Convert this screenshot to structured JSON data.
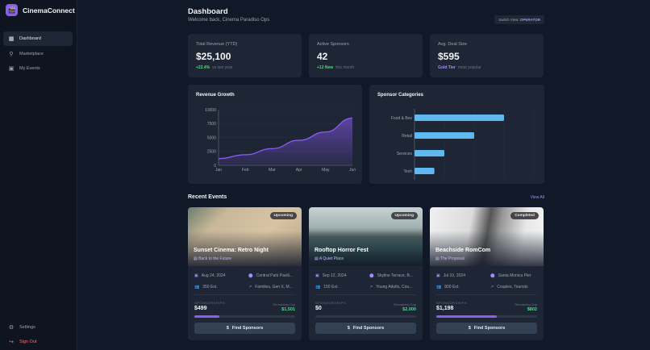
{
  "app": {
    "name": "CinemaConnect"
  },
  "sidebar": {
    "items": [
      {
        "label": "Dashboard",
        "icon": "grid-icon",
        "active": true
      },
      {
        "label": "Marketplace",
        "icon": "search-icon"
      },
      {
        "label": "My Events",
        "icon": "calendar-icon"
      }
    ],
    "bottom": [
      {
        "label": "Settings",
        "icon": "gear-icon"
      },
      {
        "label": "Sign Out",
        "icon": "sign-out-icon"
      }
    ]
  },
  "header": {
    "title": "Dashboard",
    "subtitle": "Welcome back, Cinema Paradiso Ops",
    "switch_label": "Switch View:",
    "switch_value": "OPERATOR"
  },
  "stats": [
    {
      "label": "Total Revenue (YTD)",
      "value": "$25,100",
      "delta": "+22.4%",
      "note": "vs last year"
    },
    {
      "label": "Active Sponsors",
      "value": "42",
      "delta": "+12 New",
      "note": "this month"
    },
    {
      "label": "Avg. Deal Size",
      "value": "$595",
      "delta": "Gold Tier",
      "note": "most popular"
    }
  ],
  "chart_data": [
    {
      "type": "area",
      "title": "Revenue Growth",
      "categories": [
        "Jan",
        "Feb",
        "Mar",
        "Apr",
        "May",
        "Jun"
      ],
      "values": [
        1200,
        1900,
        3000,
        4500,
        6000,
        8500
      ],
      "ylim": [
        0,
        10000
      ],
      "yticks": [
        "0",
        "2500",
        "5000",
        "7500",
        "10000"
      ],
      "color": "#8b5cf6",
      "grid": true
    },
    {
      "type": "bar",
      "orientation": "horizontal",
      "title": "Sponsor Categories",
      "categories": [
        "Food & Bev",
        "Retail",
        "Services",
        "Tech"
      ],
      "values": [
        9,
        6,
        3,
        2
      ],
      "xlim": [
        0,
        12
      ],
      "color": "#60b8f0",
      "grid": true
    }
  ],
  "recent": {
    "title": "Recent Events",
    "view_all": "View All",
    "sponsorships_label": "SPONSORSHIPS",
    "remaining_label": "Remaining Cap",
    "button": "Find Sponsors",
    "events": [
      {
        "status": "Upcoming",
        "name": "Sunset Cinema: Retro Night",
        "film": "Back to the Future",
        "date": "Aug 24, 2024",
        "location": "Central Park Pavili...",
        "attendance": "350 Est.",
        "audience": "Families, Gen X, M...",
        "sponsored": "$499",
        "remaining": "$1,501",
        "progress": 0.25
      },
      {
        "status": "Upcoming",
        "name": "Rooftop Horror Fest",
        "film": "A Quiet Place",
        "date": "Sep 12, 2024",
        "location": "Skyline Terrace, B...",
        "attendance": "150 Est.",
        "audience": "Young Adults, Cou...",
        "sponsored": "$0",
        "remaining": "$2,000",
        "progress": 0
      },
      {
        "status": "Completed",
        "name": "Beachside RomCom",
        "film": "The Proposal",
        "date": "Jul 10, 2024",
        "location": "Santa Monica Pier",
        "attendance": "800 Est.",
        "audience": "Couples, Tourists",
        "sponsored": "$1,198",
        "remaining": "$802",
        "progress": 0.6
      }
    ]
  }
}
